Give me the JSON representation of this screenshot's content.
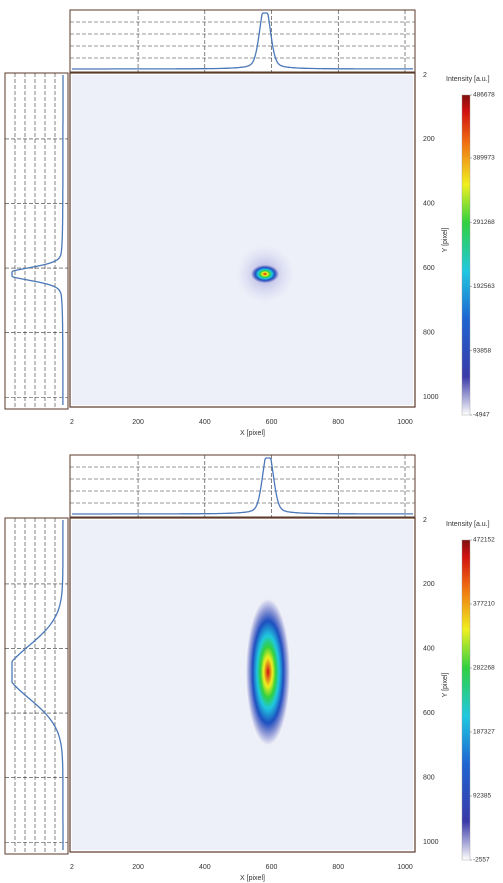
{
  "chart_data": [
    {
      "type": "heatmap",
      "x_label": "X [pixel]",
      "y_label": "Y [pixel]",
      "colorbar_label": "Intensity [a.u.]",
      "xlim": [
        2,
        1024
      ],
      "ylim": [
        2,
        1024
      ],
      "xticks": [
        2,
        200,
        400,
        600,
        800,
        1000
      ],
      "yticks": [
        2,
        200,
        400,
        600,
        800,
        1000
      ],
      "clim": [
        -4947,
        486678
      ],
      "cticks": [
        486678,
        389973,
        291268,
        192563,
        93858,
        -4947
      ]
    },
    {
      "type": "heatmap",
      "x_label": "X [pixel]",
      "y_label": "Y [pixel]",
      "colorbar_label": "Intensity [a.u.]",
      "xlim": [
        2,
        1024
      ],
      "ylim": [
        2,
        1024
      ],
      "xticks": [
        2,
        200,
        400,
        600,
        800,
        1000
      ],
      "yticks": [
        2,
        200,
        400,
        600,
        800,
        1000
      ],
      "clim": [
        -2557,
        472152
      ],
      "cticks": [
        472152,
        377210,
        282268,
        187327,
        92385,
        -2557
      ]
    }
  ]
}
